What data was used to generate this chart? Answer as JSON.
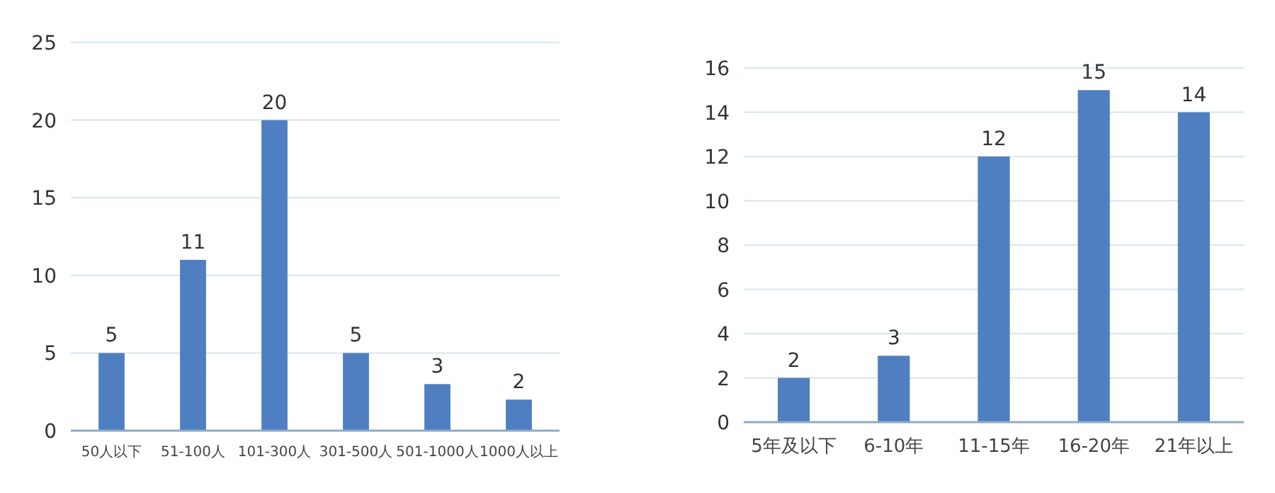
{
  "chart_data": [
    {
      "type": "bar",
      "categories": [
        "50人以下",
        "51-100人",
        "101-300人",
        "301-500人",
        "501-1000人",
        "1000人以上"
      ],
      "values": [
        5,
        11,
        20,
        5,
        3,
        2
      ],
      "color": "#4f7fc0",
      "ylim": [
        0,
        25
      ],
      "yticks": [
        0,
        5,
        10,
        15,
        20,
        25
      ],
      "grid": "y",
      "data_labels": true
    },
    {
      "type": "bar",
      "categories": [
        "5年及以下",
        "6-10年",
        "11-15年",
        "16-20年",
        "21年以上"
      ],
      "values": [
        2,
        3,
        12,
        15,
        14
      ],
      "color": "#4f7fc0",
      "ylim": [
        0,
        16
      ],
      "yticks": [
        0,
        2,
        4,
        6,
        8,
        10,
        12,
        14,
        16
      ],
      "grid": "y",
      "data_labels": true
    }
  ]
}
